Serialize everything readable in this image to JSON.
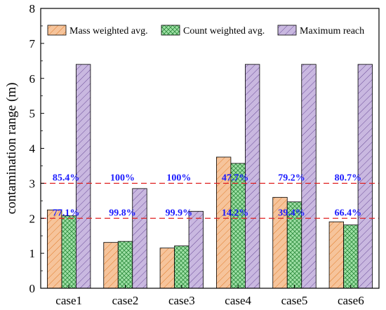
{
  "chart_data": {
    "type": "bar",
    "categories": [
      "case1",
      "case2",
      "case3",
      "case4",
      "case5",
      "case6"
    ],
    "series": [
      {
        "name": "Mass weighted avg.",
        "values": [
          2.24,
          1.31,
          1.15,
          3.75,
          2.6,
          1.9
        ],
        "color": "#f6c49b",
        "stroke": "#e07b2a"
      },
      {
        "name": "Count weighted avg.",
        "values": [
          2.07,
          1.34,
          1.21,
          3.57,
          2.47,
          1.81
        ],
        "color": "#9fe0a6",
        "stroke": "#2e8b3d"
      },
      {
        "name": "Maximum reach",
        "values": [
          6.4,
          2.85,
          2.2,
          6.4,
          6.4,
          6.4
        ],
        "color": "#c9b8e0",
        "stroke": "#6b4c99"
      }
    ],
    "ylabel": "contamination range (m)",
    "xlabel": "",
    "ylim": [
      0,
      8
    ],
    "yticks": [
      0,
      1,
      2,
      3,
      4,
      5,
      6,
      7,
      8
    ],
    "reference_lines": [
      2,
      3
    ],
    "reference_line_color": "#e02020",
    "legend_position": "top",
    "annotations_upper": [
      "85.4%",
      "100%",
      "100%",
      "47.7%",
      "79.2%",
      "80.7%"
    ],
    "annotations_lower": [
      "77.1%",
      "99.8%",
      "99.9%",
      "14.2%",
      "39.4%",
      "66.4%"
    ],
    "annotation_color": "#1a1aff"
  }
}
